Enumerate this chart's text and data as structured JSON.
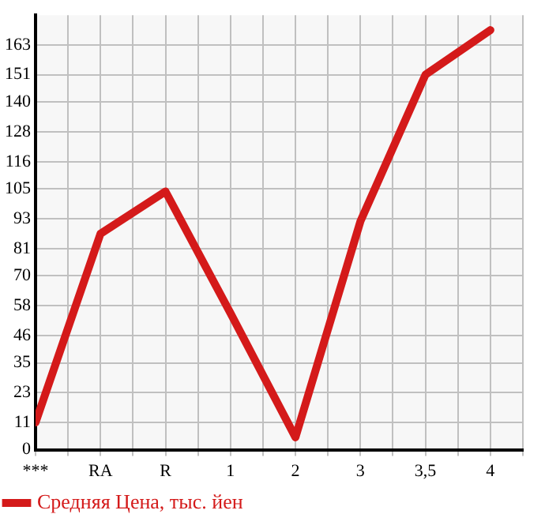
{
  "chart_data": {
    "type": "line",
    "categories": [
      "***",
      "RA",
      "R",
      "1",
      "2",
      "3",
      "3,5",
      "4"
    ],
    "series": [
      {
        "name": "Средняя Цена, тыс. йен",
        "color": "#d41a1a",
        "values": [
          11,
          87,
          104,
          55,
          5,
          92,
          151,
          169
        ]
      }
    ],
    "ylim": [
      0,
      175
    ],
    "yticks": [
      0,
      11,
      23,
      35,
      46,
      58,
      70,
      81,
      93,
      105,
      116,
      128,
      140,
      151,
      163
    ],
    "grid": true,
    "legend": "bottom",
    "marker": "none",
    "line_style": "solid"
  }
}
